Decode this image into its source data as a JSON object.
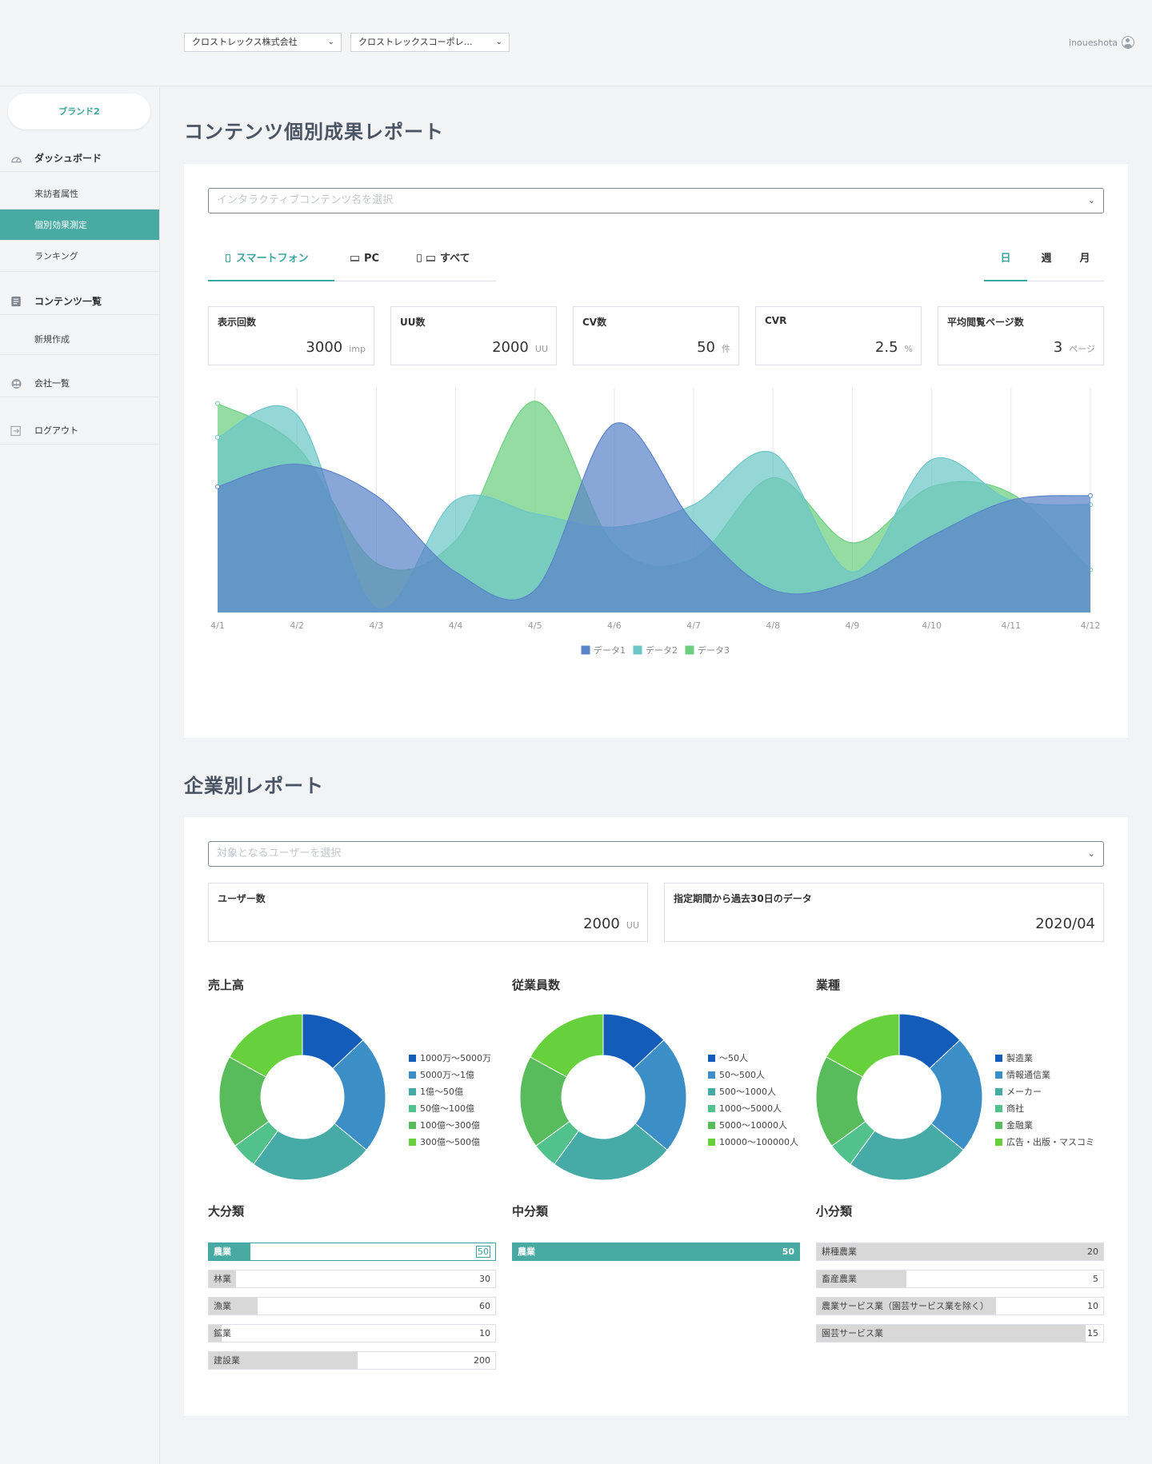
{
  "header": {
    "company_select": "クロストレックス株式会社",
    "brand_select": "クロストレックスコーポレ…",
    "username": "inoueshota"
  },
  "sidebar": {
    "brand": "ブランド2",
    "dashboard": "ダッシュボード",
    "visitor_attr": "来訪者属性",
    "individual_effect": "個別効果測定",
    "ranking": "ランキング",
    "content_list": "コンテンツ一覧",
    "new_create": "新規作成",
    "company_list": "会社一覧",
    "logout": "ログアウト"
  },
  "content_report": {
    "title": "コンテンツ個別成果レポート",
    "select_placeholder": "インタラクティブコンテンツ名を選択",
    "device_tabs": [
      "スマートフォン",
      "PC",
      "すべて"
    ],
    "period_tabs": [
      "日",
      "週",
      "月"
    ],
    "stats": [
      {
        "label": "表示回数",
        "value": "3000",
        "unit": "imp"
      },
      {
        "label": "UU数",
        "value": "2000",
        "unit": "UU"
      },
      {
        "label": "CV数",
        "value": "50",
        "unit": "件"
      },
      {
        "label": "CVR",
        "value": "2.5",
        "unit": "%"
      },
      {
        "label": "平均閲覧ページ数",
        "value": "3",
        "unit": "ページ"
      }
    ]
  },
  "chart_data": {
    "type": "area",
    "title": "",
    "xlabel": "",
    "ylabel": "",
    "ylim": [
      0,
      100
    ],
    "grid": true,
    "legend": "bottom-center",
    "x": [
      "4/1",
      "4/2",
      "4/3",
      "4/4",
      "4/5",
      "4/6",
      "4/7",
      "4/8",
      "4/9",
      "4/10",
      "4/11",
      "4/12"
    ],
    "series": [
      {
        "name": "データ1",
        "color": "#5b84c9",
        "values": [
          56,
          66,
          52,
          18,
          10,
          84,
          40,
          10,
          14,
          34,
          50,
          52
        ]
      },
      {
        "name": "データ2",
        "color": "#6cc6c8",
        "values": [
          78,
          88,
          2,
          50,
          44,
          38,
          48,
          71,
          18,
          68,
          50,
          48
        ]
      },
      {
        "name": "データ3",
        "color": "#6ccf7f",
        "values": [
          93,
          74,
          22,
          32,
          94,
          30,
          24,
          60,
          31,
          56,
          53,
          19
        ]
      }
    ]
  },
  "company_report": {
    "title": "企業別レポート",
    "select_placeholder": "対象となるユーザーを選択",
    "user_count": {
      "label": "ユーザー数",
      "value": "2000",
      "unit": "UU"
    },
    "period_data": {
      "label": "指定期間から過去30日のデータ",
      "value": "2020/04"
    },
    "donuts": [
      {
        "label": "売上高",
        "items": [
          "1000万〜5000万",
          "5000万〜1億",
          "1億〜50億",
          "50億〜100億",
          "100億〜300億",
          "300億〜500億"
        ]
      },
      {
        "label": "従業員数",
        "items": [
          "〜50人",
          "50〜500人",
          "500〜1000人",
          "1000〜5000人",
          "5000〜10000人",
          "10000〜100000人"
        ]
      },
      {
        "label": "業種",
        "items": [
          "製造業",
          "情報通信業",
          "メーカー",
          "商社",
          "金融業",
          "広告・出版・マスコミ"
        ]
      }
    ],
    "donut_values": [
      13,
      23,
      24,
      5,
      18,
      17
    ],
    "donut_colors": [
      "#135cb9",
      "#3b8ec6",
      "#46aaa6",
      "#52c28d",
      "#58bb5c",
      "#66d13c"
    ],
    "major": {
      "label": "大分類",
      "items": [
        {
          "name": "農業",
          "value": 50
        },
        {
          "name": "林業",
          "value": 30
        },
        {
          "name": "漁業",
          "value": 60
        },
        {
          "name": "鉱業",
          "value": 10
        },
        {
          "name": "建設業",
          "value": 200
        }
      ]
    },
    "middle": {
      "label": "中分類",
      "items": [
        {
          "name": "農業",
          "value": 50
        }
      ]
    },
    "minor": {
      "label": "小分類",
      "items": [
        {
          "name": "耕種農業",
          "value": 20
        },
        {
          "name": "畜産農業",
          "value": 5
        },
        {
          "name": "農業サービス業（園芸サービス業を除く）",
          "value": 10
        },
        {
          "name": "園芸サービス業",
          "value": 15
        }
      ]
    }
  }
}
